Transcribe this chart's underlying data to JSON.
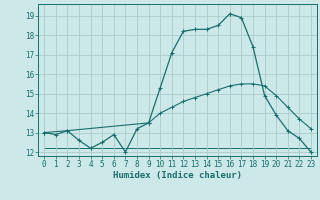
{
  "xlabel": "Humidex (Indice chaleur)",
  "bg_color": "#cce8e8",
  "grid_color": "#aacccc",
  "line_color": "#1a6e6e",
  "xlim": [
    -0.5,
    23.5
  ],
  "ylim": [
    11.8,
    19.6
  ],
  "yticks": [
    12,
    13,
    14,
    15,
    16,
    17,
    18,
    19
  ],
  "xticks": [
    0,
    1,
    2,
    3,
    4,
    5,
    6,
    7,
    8,
    9,
    10,
    11,
    12,
    13,
    14,
    15,
    16,
    17,
    18,
    19,
    20,
    21,
    22,
    23
  ],
  "line1_x": [
    0,
    1,
    2,
    3,
    4,
    5,
    6,
    7,
    8,
    9,
    10,
    11,
    12,
    13,
    14,
    15,
    16,
    17,
    18,
    19,
    20,
    21,
    22,
    23
  ],
  "line1_y": [
    13.0,
    12.9,
    13.1,
    12.6,
    12.2,
    12.5,
    12.9,
    12.0,
    13.2,
    13.5,
    15.3,
    17.1,
    18.2,
    18.3,
    18.3,
    18.5,
    19.1,
    18.9,
    17.4,
    14.9,
    13.9,
    13.1,
    12.7,
    12.0
  ],
  "line2_x": [
    0,
    2,
    9,
    10,
    11,
    12,
    13,
    14,
    15,
    16,
    17,
    18,
    19,
    20,
    21,
    22,
    23
  ],
  "line2_y": [
    13.0,
    13.1,
    13.5,
    14.0,
    14.3,
    14.6,
    14.8,
    15.0,
    15.2,
    15.4,
    15.5,
    15.5,
    15.4,
    14.9,
    14.3,
    13.7,
    13.2
  ],
  "line3_x": [
    0,
    1,
    2,
    3,
    4,
    5,
    6,
    7,
    8,
    9,
    10,
    11,
    12,
    13,
    14,
    15,
    16,
    17,
    18,
    19,
    20,
    21,
    22,
    23
  ],
  "line3_y": [
    12.2,
    12.2,
    12.2,
    12.2,
    12.2,
    12.2,
    12.2,
    12.2,
    12.2,
    12.2,
    12.2,
    12.2,
    12.2,
    12.2,
    12.2,
    12.2,
    12.2,
    12.2,
    12.2,
    12.2,
    12.2,
    12.2,
    12.2,
    12.2
  ],
  "tick_fontsize": 5.5,
  "xlabel_fontsize": 6.5
}
